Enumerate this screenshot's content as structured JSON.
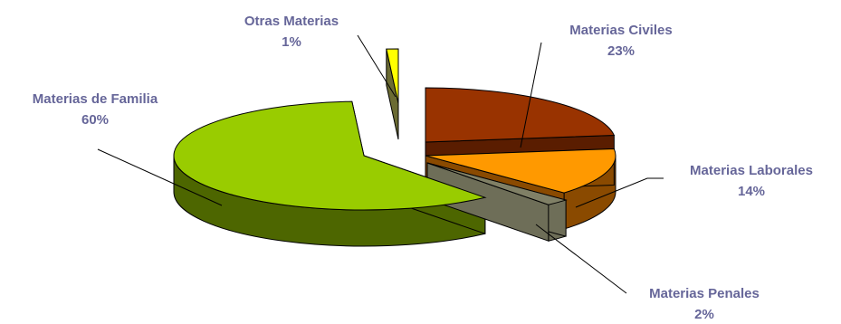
{
  "chart_data": {
    "type": "pie",
    "variant": "3d-exploded",
    "title": "",
    "slices": [
      {
        "name": "Materias Civiles",
        "label": "Materias Civiles",
        "value": 23,
        "pct_label": "23%",
        "color": "#993300",
        "side": "#5a1d00"
      },
      {
        "name": "Materias Laborales",
        "label": "Materias Laborales",
        "value": 14,
        "pct_label": "14%",
        "color": "#FF9900",
        "side": "#8a4a00"
      },
      {
        "name": "Materias Penales",
        "label": "Materias Penales",
        "value": 2,
        "pct_label": "2%",
        "color": "#808066",
        "side": "#6e6e58"
      },
      {
        "name": "Materias de Familia",
        "label": "Materias de Familia",
        "value": 60,
        "pct_label": "60%",
        "color": "#99CC00",
        "side": "#4d6600"
      },
      {
        "name": "Otras Materias",
        "label": "Otras Materias",
        "value": 1,
        "pct_label": "1%",
        "color": "#FFFF00",
        "side": "#6b6b33"
      }
    ],
    "legend": "none",
    "label_color": "#666699"
  }
}
